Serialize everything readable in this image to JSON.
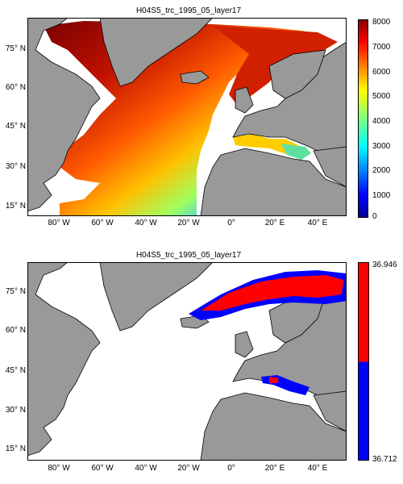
{
  "colors": {
    "land": "#999999",
    "ocean_missing": "#ffffff",
    "coast": "#000000",
    "cb_top_red": "#ff0000",
    "cb_bottom_blue": "#0000ff"
  },
  "panels": [
    {
      "title": "H04S5_trc_1995_05_layer17",
      "lat_ticks": [
        "75° N",
        "60° N",
        "45° N",
        "30° N",
        "15° N"
      ],
      "lon_ticks": [
        "80° W",
        "60° W",
        "40° W",
        "20° W",
        "0°",
        "20° E",
        "40° E"
      ],
      "colorbar": {
        "type": "jet",
        "ticks": [
          "8000",
          "7000",
          "6000",
          "5000",
          "4000",
          "3000",
          "2000",
          "1000",
          "0"
        ],
        "min": 0,
        "max": 8000
      }
    },
    {
      "title": "H04S5_trc_1995_05_layer17",
      "lat_ticks": [
        "75° N",
        "60° N",
        "45° N",
        "30° N",
        "15° N"
      ],
      "lon_ticks": [
        "80° W",
        "60° W",
        "40° W",
        "20° W",
        "0°",
        "20° E",
        "40° E"
      ],
      "colorbar": {
        "type": "two-color",
        "top_label": "36.946",
        "bottom_label": "36.712"
      }
    }
  ]
}
